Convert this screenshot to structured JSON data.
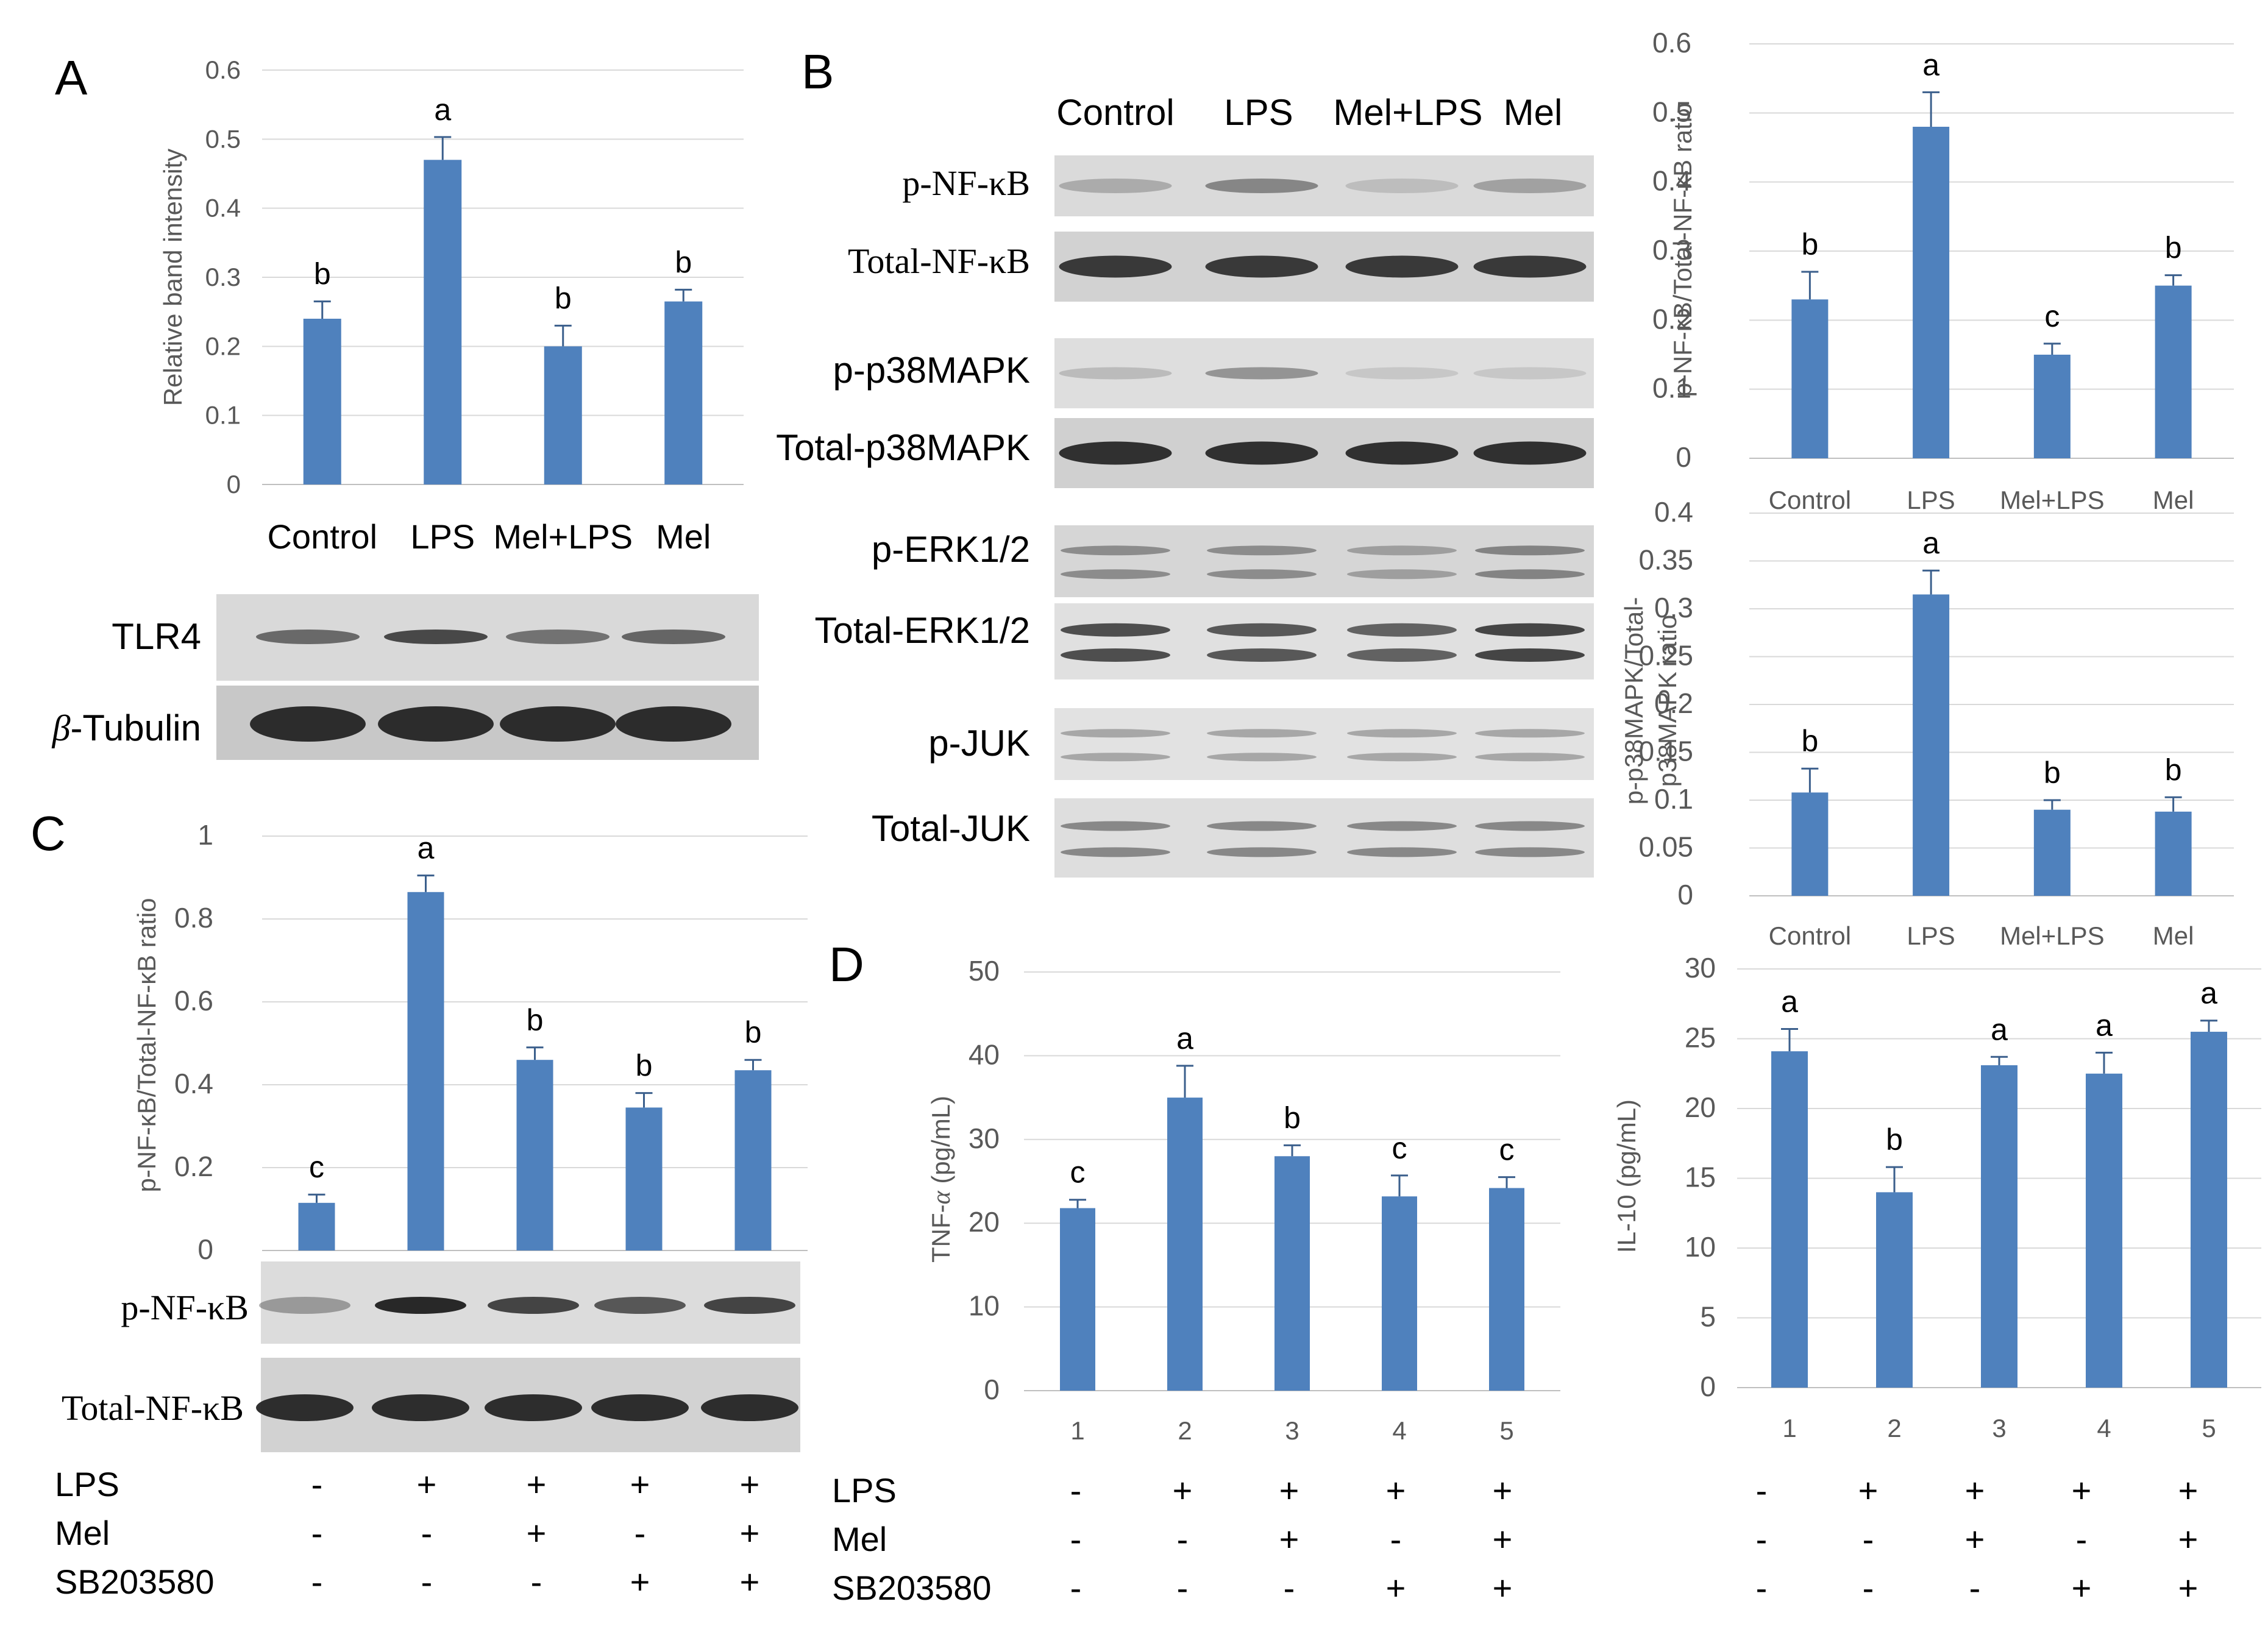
{
  "panels": {
    "A": "A",
    "B": "B",
    "C": "C",
    "D": "D"
  },
  "colors": {
    "bar": "#4f81bd",
    "grid": "#d9d9d9",
    "tick": "#595959",
    "band": "#1e1e1e"
  },
  "chart_data": [
    {
      "id": "A",
      "type": "bar",
      "categories": [
        "Control",
        "LPS",
        "Mel+LPS",
        "Mel"
      ],
      "values": [
        0.24,
        0.47,
        0.2,
        0.265
      ],
      "errors": [
        0.025,
        0.033,
        0.03,
        0.017
      ],
      "significance": [
        "b",
        "a",
        "b",
        "b"
      ],
      "ylabel": "Relative band intensity",
      "ylim": [
        0,
        0.6
      ],
      "yticks": [
        "0",
        "0.1",
        "0.2",
        "0.3",
        "0.4",
        "0.5",
        "0.6"
      ],
      "grid": true
    },
    {
      "id": "B1",
      "type": "bar",
      "categories": [
        "Control",
        "LPS",
        "Mel+LPS",
        "Mel"
      ],
      "values": [
        0.23,
        0.48,
        0.15,
        0.25
      ],
      "errors": [
        0.04,
        0.05,
        0.016,
        0.015
      ],
      "significance": [
        "b",
        "a",
        "c",
        "b"
      ],
      "ylabel": "p-NF-κB/Total-NF-κB ratio",
      "ylim": [
        0,
        0.6
      ],
      "yticks": [
        "0",
        "0.1",
        "0.2",
        "0.3",
        "0.4",
        "0.5",
        "0.6"
      ],
      "grid": true
    },
    {
      "id": "B2",
      "type": "bar",
      "categories": [
        "Control",
        "LPS",
        "Mel+LPS",
        "Mel"
      ],
      "values": [
        0.108,
        0.315,
        0.09,
        0.088
      ],
      "errors": [
        0.025,
        0.025,
        0.01,
        0.015
      ],
      "significance": [
        "b",
        "a",
        "b",
        "b"
      ],
      "ylabel_lines": [
        "p-p38MAPK/Total-",
        "p38MAPK ratio"
      ],
      "ylim": [
        0,
        0.4
      ],
      "yticks": [
        "0",
        "0.05",
        "0.1",
        "0.15",
        "0.2",
        "0.25",
        "0.3",
        "0.35",
        "0.4"
      ],
      "grid": true
    },
    {
      "id": "C",
      "type": "bar",
      "categories": [
        "1",
        "2",
        "3",
        "4",
        "5"
      ],
      "values": [
        0.115,
        0.865,
        0.46,
        0.345,
        0.435
      ],
      "errors": [
        0.02,
        0.04,
        0.03,
        0.035,
        0.025
      ],
      "significance": [
        "c",
        "a",
        "b",
        "b",
        "b"
      ],
      "ylabel": "p-NF-κB/Total-NF-κB ratio",
      "ylim": [
        0,
        1
      ],
      "yticks": [
        "0",
        "0.2",
        "0.4",
        "0.6",
        "0.8",
        "1"
      ],
      "grid": true
    },
    {
      "id": "D1",
      "type": "bar",
      "categories": [
        "1",
        "2",
        "3",
        "4",
        "5"
      ],
      "values": [
        21.8,
        35,
        28,
        23.2,
        24.2
      ],
      "errors": [
        1,
        3.8,
        1.3,
        2.5,
        1.3
      ],
      "significance": [
        "c",
        "a",
        "b",
        "c",
        "c"
      ],
      "ylabel_prefix": "TNF-",
      "ylabel_greek": "α",
      "ylabel_suffix": " (pg/mL)",
      "ylim": [
        0,
        50
      ],
      "yticks": [
        "0",
        "10",
        "20",
        "30",
        "40",
        "50"
      ],
      "grid": true
    },
    {
      "id": "D2",
      "type": "bar",
      "categories": [
        "1",
        "2",
        "3",
        "4",
        "5"
      ],
      "values": [
        24.1,
        14,
        23.1,
        22.5,
        25.5
      ],
      "errors": [
        1.6,
        1.8,
        0.6,
        1.5,
        0.8
      ],
      "significance": [
        "a",
        "b",
        "a",
        "a",
        "a"
      ],
      "ylabel": "IL-10 (pg/mL)",
      "ylim": [
        0,
        30
      ],
      "yticks": [
        "0",
        "5",
        "10",
        "15",
        "20",
        "25",
        "30"
      ],
      "grid": true
    }
  ],
  "blot_a": {
    "rows": [
      "TLR4",
      "-Tubulin"
    ],
    "rows_prefix": [
      "",
      "β"
    ],
    "tlr4_intensity": [
      0.5,
      0.85,
      0.4,
      0.55
    ],
    "tubulin_intensity": [
      1,
      1,
      1,
      1
    ]
  },
  "blot_b": {
    "lanes": [
      "Control",
      "LPS",
      "Mel+LPS",
      "Mel"
    ],
    "rows": [
      "p-NF-κB",
      "Total-NF-κB",
      "p-p38MAPK",
      "Total-p38MAPK",
      "p-ERK1/2",
      "Total-ERK1/2",
      "p-JUK",
      "Total-JUK"
    ]
  },
  "blot_c": {
    "rows": [
      "p-NF-κB",
      "Total-NF-κB"
    ]
  },
  "treatments": {
    "rows": [
      "LPS",
      "Mel",
      "SB203580"
    ],
    "values": [
      [
        "-",
        "+",
        "+",
        "+",
        "+"
      ],
      [
        "-",
        "-",
        "+",
        "-",
        "+"
      ],
      [
        "-",
        "-",
        "-",
        "+",
        "+"
      ]
    ]
  }
}
